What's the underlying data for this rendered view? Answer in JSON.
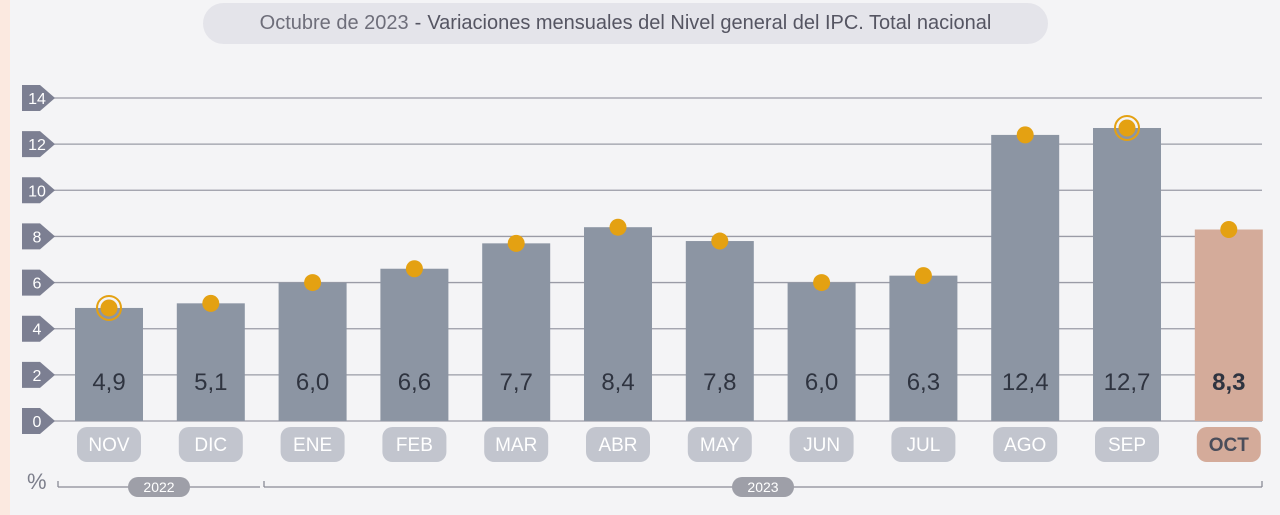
{
  "title": {
    "date": "Octubre de 2023",
    "separator": "-",
    "text": "Variaciones mensuales del Nivel general del IPC. Total nacional"
  },
  "unit_label": "%",
  "colors": {
    "bar": "#8c95a3",
    "bar_highlight": "#d4ab9a",
    "marker": "#e4a112",
    "label_pill": "#c2c5ce",
    "label_pill_highlight": "#d4ab9a",
    "value_text": "#2f3440",
    "tick_badge": "#7c7f92"
  },
  "chart_data": {
    "type": "bar",
    "title": "Variaciones mensuales del Nivel general del IPC. Total nacional",
    "ylabel": "%",
    "ylim": [
      0,
      14
    ],
    "yticks": [
      "0",
      "2",
      "4",
      "6",
      "8",
      "10",
      "12",
      "14"
    ],
    "grid": true,
    "categories": [
      "NOV",
      "DIC",
      "ENE",
      "FEB",
      "MAR",
      "ABR",
      "MAY",
      "JUN",
      "JUL",
      "AGO",
      "SEP",
      "OCT"
    ],
    "values": [
      4.9,
      5.1,
      6.0,
      6.6,
      7.7,
      8.4,
      7.8,
      6.0,
      6.3,
      12.4,
      12.7,
      8.3
    ],
    "value_labels": [
      "4,9",
      "5,1",
      "6,0",
      "6,6",
      "7,7",
      "8,4",
      "7,8",
      "6,0",
      "6,3",
      "12,4",
      "12,7",
      "8,3"
    ],
    "highlight_index": 11,
    "ringed_markers": [
      0,
      10
    ],
    "year_groups": [
      {
        "label": "2022",
        "start": 0,
        "end": 1
      },
      {
        "label": "2023",
        "start": 2,
        "end": 11
      }
    ]
  }
}
